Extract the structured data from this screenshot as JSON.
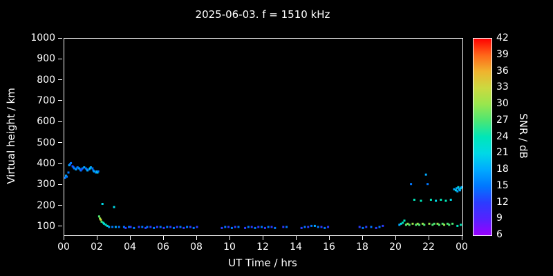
{
  "title": "2025-06-03. f = 1510 kHz",
  "xlabel": "UT Time / hrs",
  "ylabel": "Virtual height / km",
  "axes": {
    "x_ticks": [
      "00",
      "02",
      "04",
      "06",
      "08",
      "10",
      "12",
      "14",
      "16",
      "18",
      "20",
      "22",
      "00"
    ],
    "y_ticks": [
      1000,
      900,
      800,
      700,
      600,
      500,
      400,
      300,
      200,
      100
    ],
    "x_range": [
      0,
      24
    ],
    "y_range": [
      60,
      1000
    ]
  },
  "colorbar": {
    "label": "SNR / dB",
    "ticks": [
      42,
      39,
      36,
      33,
      30,
      27,
      24,
      21,
      18,
      15,
      12,
      9,
      6
    ],
    "min": 6,
    "max": 42,
    "step": 3,
    "palette_bottom_to_top": [
      "#9900ff",
      "#5522ff",
      "#2b3cff",
      "#0077ff",
      "#00aaff",
      "#00d9e6",
      "#00e6b8",
      "#4ce673",
      "#99e64d",
      "#ccd940",
      "#f0b32e",
      "#ff6619",
      "#ff0000"
    ]
  },
  "chart_data": {
    "type": "scatter",
    "title": "2025-06-03. f = 1510 kHz",
    "xlabel": "UT Time / hrs",
    "ylabel": "Virtual height / km",
    "color_label": "SNR / dB",
    "xlim": [
      0,
      24
    ],
    "ylim": [
      60,
      1000
    ],
    "clim": [
      6,
      42
    ],
    "grid": false,
    "point_format": "[ut_hours, virtual_height_km, snr_db]",
    "points": [
      [
        0.05,
        335,
        15
      ],
      [
        0.1,
        345,
        18
      ],
      [
        0.15,
        340,
        15
      ],
      [
        0.25,
        360,
        15
      ],
      [
        0.3,
        395,
        18
      ],
      [
        0.35,
        400,
        15
      ],
      [
        0.4,
        405,
        15
      ],
      [
        0.5,
        390,
        12
      ],
      [
        0.55,
        385,
        15
      ],
      [
        0.6,
        380,
        15
      ],
      [
        0.7,
        375,
        18
      ],
      [
        0.75,
        380,
        15
      ],
      [
        0.8,
        385,
        15
      ],
      [
        0.9,
        380,
        18
      ],
      [
        0.95,
        375,
        15
      ],
      [
        1.0,
        370,
        15
      ],
      [
        1.05,
        375,
        12
      ],
      [
        1.1,
        380,
        15
      ],
      [
        1.2,
        385,
        18
      ],
      [
        1.3,
        380,
        15
      ],
      [
        1.35,
        375,
        15
      ],
      [
        1.4,
        370,
        18
      ],
      [
        1.5,
        375,
        15
      ],
      [
        1.55,
        380,
        21
      ],
      [
        1.6,
        385,
        18
      ],
      [
        1.7,
        380,
        15
      ],
      [
        1.75,
        370,
        15
      ],
      [
        1.8,
        365,
        18
      ],
      [
        1.9,
        360,
        15
      ],
      [
        1.95,
        365,
        18
      ],
      [
        2.0,
        360,
        21
      ],
      [
        2.05,
        365,
        15
      ],
      [
        2.1,
        150,
        27
      ],
      [
        2.15,
        140,
        30
      ],
      [
        2.2,
        135,
        33
      ],
      [
        2.25,
        125,
        27
      ],
      [
        2.3,
        210,
        21
      ],
      [
        2.35,
        120,
        24
      ],
      [
        2.4,
        115,
        21
      ],
      [
        2.5,
        110,
        24
      ],
      [
        2.6,
        105,
        21
      ],
      [
        2.7,
        100,
        18
      ],
      [
        2.9,
        100,
        15
      ],
      [
        3.0,
        195,
        21
      ],
      [
        3.1,
        100,
        18
      ],
      [
        3.3,
        100,
        15
      ],
      [
        3.6,
        100,
        15
      ],
      [
        3.7,
        95,
        12
      ],
      [
        3.9,
        100,
        15
      ],
      [
        4.0,
        100,
        12
      ],
      [
        4.2,
        95,
        15
      ],
      [
        4.5,
        100,
        12
      ],
      [
        4.7,
        100,
        15
      ],
      [
        4.9,
        95,
        12
      ],
      [
        5.0,
        100,
        15
      ],
      [
        5.2,
        100,
        12
      ],
      [
        5.4,
        95,
        15
      ],
      [
        5.6,
        100,
        12
      ],
      [
        5.8,
        100,
        15
      ],
      [
        6.0,
        95,
        12
      ],
      [
        6.2,
        100,
        15
      ],
      [
        6.4,
        100,
        12
      ],
      [
        6.6,
        95,
        15
      ],
      [
        6.8,
        100,
        12
      ],
      [
        7.0,
        100,
        15
      ],
      [
        7.2,
        95,
        12
      ],
      [
        7.4,
        100,
        15
      ],
      [
        7.6,
        100,
        12
      ],
      [
        7.8,
        95,
        15
      ],
      [
        8.0,
        100,
        12
      ],
      [
        9.5,
        95,
        12
      ],
      [
        9.7,
        100,
        15
      ],
      [
        9.9,
        100,
        12
      ],
      [
        10.1,
        95,
        15
      ],
      [
        10.3,
        100,
        12
      ],
      [
        10.5,
        100,
        15
      ],
      [
        10.9,
        95,
        12
      ],
      [
        11.1,
        100,
        15
      ],
      [
        11.3,
        100,
        12
      ],
      [
        11.5,
        95,
        15
      ],
      [
        11.7,
        100,
        12
      ],
      [
        11.9,
        100,
        15
      ],
      [
        12.1,
        95,
        12
      ],
      [
        12.3,
        100,
        15
      ],
      [
        12.5,
        100,
        12
      ],
      [
        12.7,
        95,
        15
      ],
      [
        13.2,
        100,
        12
      ],
      [
        13.4,
        100,
        15
      ],
      [
        14.3,
        95,
        12
      ],
      [
        14.5,
        100,
        15
      ],
      [
        14.7,
        100,
        12
      ],
      [
        14.9,
        105,
        15
      ],
      [
        15.1,
        105,
        18
      ],
      [
        15.3,
        100,
        15
      ],
      [
        15.5,
        100,
        12
      ],
      [
        15.7,
        95,
        15
      ],
      [
        15.9,
        100,
        12
      ],
      [
        17.8,
        100,
        12
      ],
      [
        18.0,
        95,
        15
      ],
      [
        18.2,
        100,
        12
      ],
      [
        18.5,
        100,
        15
      ],
      [
        18.8,
        95,
        12
      ],
      [
        19.0,
        100,
        15
      ],
      [
        19.2,
        105,
        12
      ],
      [
        20.2,
        110,
        18
      ],
      [
        20.3,
        115,
        21
      ],
      [
        20.4,
        120,
        24
      ],
      [
        20.5,
        130,
        24
      ],
      [
        20.6,
        110,
        27
      ],
      [
        20.7,
        115,
        30
      ],
      [
        20.8,
        110,
        27
      ],
      [
        20.9,
        305,
        15
      ],
      [
        21.0,
        115,
        30
      ],
      [
        21.1,
        230,
        24
      ],
      [
        21.2,
        110,
        27
      ],
      [
        21.3,
        115,
        30
      ],
      [
        21.4,
        110,
        27
      ],
      [
        21.5,
        225,
        24
      ],
      [
        21.6,
        115,
        30
      ],
      [
        21.7,
        110,
        27
      ],
      [
        21.8,
        350,
        18
      ],
      [
        21.9,
        305,
        15
      ],
      [
        22.0,
        115,
        30
      ],
      [
        22.1,
        230,
        24
      ],
      [
        22.2,
        110,
        27
      ],
      [
        22.3,
        115,
        27
      ],
      [
        22.4,
        225,
        21
      ],
      [
        22.5,
        115,
        30
      ],
      [
        22.6,
        110,
        27
      ],
      [
        22.7,
        230,
        24
      ],
      [
        22.8,
        115,
        27
      ],
      [
        22.9,
        110,
        30
      ],
      [
        23.0,
        225,
        24
      ],
      [
        23.1,
        115,
        27
      ],
      [
        23.2,
        110,
        27
      ],
      [
        23.3,
        230,
        21
      ],
      [
        23.4,
        115,
        27
      ],
      [
        23.5,
        280,
        18
      ],
      [
        23.6,
        275,
        21
      ],
      [
        23.65,
        285,
        18
      ],
      [
        23.7,
        270,
        18
      ],
      [
        23.7,
        105,
        24
      ],
      [
        23.75,
        290,
        21
      ],
      [
        23.8,
        280,
        18
      ],
      [
        23.85,
        275,
        18
      ],
      [
        23.9,
        285,
        21
      ],
      [
        23.9,
        110,
        24
      ],
      [
        23.95,
        290,
        18
      ]
    ]
  }
}
